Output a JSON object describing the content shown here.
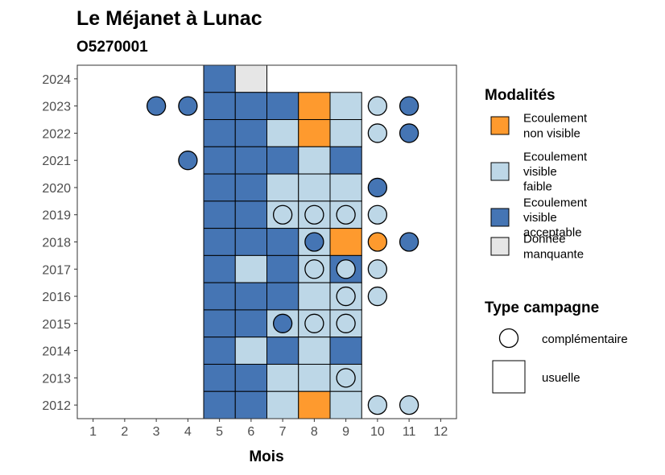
{
  "chart_data": {
    "type": "heatmap",
    "title": "Le Méjanet à Lunac",
    "subtitle": "O5270001",
    "xlabel": "Mois",
    "ylabel": "",
    "x_ticks": [
      1,
      2,
      3,
      4,
      5,
      6,
      7,
      8,
      9,
      10,
      11,
      12
    ],
    "y_ticks": [
      2012,
      2013,
      2014,
      2015,
      2016,
      2017,
      2018,
      2019,
      2020,
      2021,
      2022,
      2023,
      2024
    ],
    "xlim": [
      0.5,
      12.5
    ],
    "ylim": [
      2011.5,
      2024.5
    ],
    "grid": false,
    "modalities": [
      {
        "key": "nv",
        "label": [
          "Ecoulement",
          "non visible"
        ],
        "color": "#FE9A2E"
      },
      {
        "key": "vf",
        "label": [
          "Ecoulement",
          "visible",
          "faible"
        ],
        "color": "#BDD7E7"
      },
      {
        "key": "va",
        "label": [
          "Ecoulement",
          "visible",
          "acceptable"
        ],
        "color": "#4575B4"
      },
      {
        "key": "dm",
        "label": [
          "Donnée",
          "manquante"
        ],
        "color": "#E6E6E6"
      }
    ],
    "campaign_types": [
      {
        "key": "comp",
        "label": "complémentaire",
        "shape": "circle"
      },
      {
        "key": "usu",
        "label": "usuelle",
        "shape": "square"
      }
    ],
    "tiles": [
      {
        "year": 2024,
        "month": 5,
        "mod": "va"
      },
      {
        "year": 2024,
        "month": 6,
        "mod": "dm"
      },
      {
        "year": 2023,
        "month": 5,
        "mod": "va"
      },
      {
        "year": 2023,
        "month": 6,
        "mod": "va"
      },
      {
        "year": 2023,
        "month": 7,
        "mod": "va"
      },
      {
        "year": 2023,
        "month": 8,
        "mod": "nv"
      },
      {
        "year": 2023,
        "month": 9,
        "mod": "vf"
      },
      {
        "year": 2022,
        "month": 5,
        "mod": "va"
      },
      {
        "year": 2022,
        "month": 6,
        "mod": "va"
      },
      {
        "year": 2022,
        "month": 7,
        "mod": "vf"
      },
      {
        "year": 2022,
        "month": 8,
        "mod": "nv"
      },
      {
        "year": 2022,
        "month": 9,
        "mod": "vf"
      },
      {
        "year": 2021,
        "month": 5,
        "mod": "va"
      },
      {
        "year": 2021,
        "month": 6,
        "mod": "va"
      },
      {
        "year": 2021,
        "month": 7,
        "mod": "va"
      },
      {
        "year": 2021,
        "month": 8,
        "mod": "vf"
      },
      {
        "year": 2021,
        "month": 9,
        "mod": "va"
      },
      {
        "year": 2020,
        "month": 5,
        "mod": "va"
      },
      {
        "year": 2020,
        "month": 6,
        "mod": "va"
      },
      {
        "year": 2020,
        "month": 7,
        "mod": "vf"
      },
      {
        "year": 2020,
        "month": 8,
        "mod": "vf"
      },
      {
        "year": 2020,
        "month": 9,
        "mod": "vf"
      },
      {
        "year": 2019,
        "month": 5,
        "mod": "va"
      },
      {
        "year": 2019,
        "month": 6,
        "mod": "va"
      },
      {
        "year": 2019,
        "month": 7,
        "mod": "vf"
      },
      {
        "year": 2019,
        "month": 8,
        "mod": "vf"
      },
      {
        "year": 2019,
        "month": 9,
        "mod": "vf"
      },
      {
        "year": 2018,
        "month": 5,
        "mod": "va"
      },
      {
        "year": 2018,
        "month": 6,
        "mod": "va"
      },
      {
        "year": 2018,
        "month": 7,
        "mod": "va"
      },
      {
        "year": 2018,
        "month": 8,
        "mod": "vf"
      },
      {
        "year": 2018,
        "month": 9,
        "mod": "nv"
      },
      {
        "year": 2017,
        "month": 5,
        "mod": "va"
      },
      {
        "year": 2017,
        "month": 6,
        "mod": "vf"
      },
      {
        "year": 2017,
        "month": 7,
        "mod": "va"
      },
      {
        "year": 2017,
        "month": 8,
        "mod": "vf"
      },
      {
        "year": 2017,
        "month": 9,
        "mod": "va"
      },
      {
        "year": 2016,
        "month": 5,
        "mod": "va"
      },
      {
        "year": 2016,
        "month": 6,
        "mod": "va"
      },
      {
        "year": 2016,
        "month": 7,
        "mod": "va"
      },
      {
        "year": 2016,
        "month": 8,
        "mod": "vf"
      },
      {
        "year": 2016,
        "month": 9,
        "mod": "vf"
      },
      {
        "year": 2015,
        "month": 5,
        "mod": "va"
      },
      {
        "year": 2015,
        "month": 6,
        "mod": "va"
      },
      {
        "year": 2015,
        "month": 7,
        "mod": "vf"
      },
      {
        "year": 2015,
        "month": 8,
        "mod": "vf"
      },
      {
        "year": 2015,
        "month": 9,
        "mod": "vf"
      },
      {
        "year": 2014,
        "month": 5,
        "mod": "va"
      },
      {
        "year": 2014,
        "month": 6,
        "mod": "vf"
      },
      {
        "year": 2014,
        "month": 7,
        "mod": "va"
      },
      {
        "year": 2014,
        "month": 8,
        "mod": "vf"
      },
      {
        "year": 2014,
        "month": 9,
        "mod": "va"
      },
      {
        "year": 2013,
        "month": 5,
        "mod": "va"
      },
      {
        "year": 2013,
        "month": 6,
        "mod": "va"
      },
      {
        "year": 2013,
        "month": 7,
        "mod": "vf"
      },
      {
        "year": 2013,
        "month": 8,
        "mod": "vf"
      },
      {
        "year": 2013,
        "month": 9,
        "mod": "vf"
      },
      {
        "year": 2012,
        "month": 5,
        "mod": "va"
      },
      {
        "year": 2012,
        "month": 6,
        "mod": "va"
      },
      {
        "year": 2012,
        "month": 7,
        "mod": "vf"
      },
      {
        "year": 2012,
        "month": 8,
        "mod": "nv"
      },
      {
        "year": 2012,
        "month": 9,
        "mod": "vf"
      }
    ],
    "points": [
      {
        "year": 2023,
        "month": 3,
        "mod": "va"
      },
      {
        "year": 2023,
        "month": 4,
        "mod": "va"
      },
      {
        "year": 2023,
        "month": 10,
        "mod": "vf"
      },
      {
        "year": 2023,
        "month": 11,
        "mod": "va"
      },
      {
        "year": 2022,
        "month": 10,
        "mod": "vf"
      },
      {
        "year": 2022,
        "month": 11,
        "mod": "va"
      },
      {
        "year": 2021,
        "month": 4,
        "mod": "va"
      },
      {
        "year": 2020,
        "month": 10,
        "mod": "va"
      },
      {
        "year": 2019,
        "month": 7,
        "mod": "vf"
      },
      {
        "year": 2019,
        "month": 8,
        "mod": "vf"
      },
      {
        "year": 2019,
        "month": 9,
        "mod": "vf"
      },
      {
        "year": 2019,
        "month": 10,
        "mod": "vf"
      },
      {
        "year": 2018,
        "month": 8,
        "mod": "va"
      },
      {
        "year": 2018,
        "month": 10,
        "mod": "nv"
      },
      {
        "year": 2018,
        "month": 11,
        "mod": "va"
      },
      {
        "year": 2017,
        "month": 8,
        "mod": "vf"
      },
      {
        "year": 2017,
        "month": 9,
        "mod": "vf"
      },
      {
        "year": 2017,
        "month": 10,
        "mod": "vf"
      },
      {
        "year": 2016,
        "month": 9,
        "mod": "vf"
      },
      {
        "year": 2016,
        "month": 10,
        "mod": "vf"
      },
      {
        "year": 2015,
        "month": 7,
        "mod": "va"
      },
      {
        "year": 2015,
        "month": 8,
        "mod": "vf"
      },
      {
        "year": 2015,
        "month": 9,
        "mod": "vf"
      },
      {
        "year": 2013,
        "month": 9,
        "mod": "vf"
      },
      {
        "year": 2012,
        "month": 10,
        "mod": "vf"
      },
      {
        "year": 2012,
        "month": 11,
        "mod": "vf"
      }
    ]
  }
}
